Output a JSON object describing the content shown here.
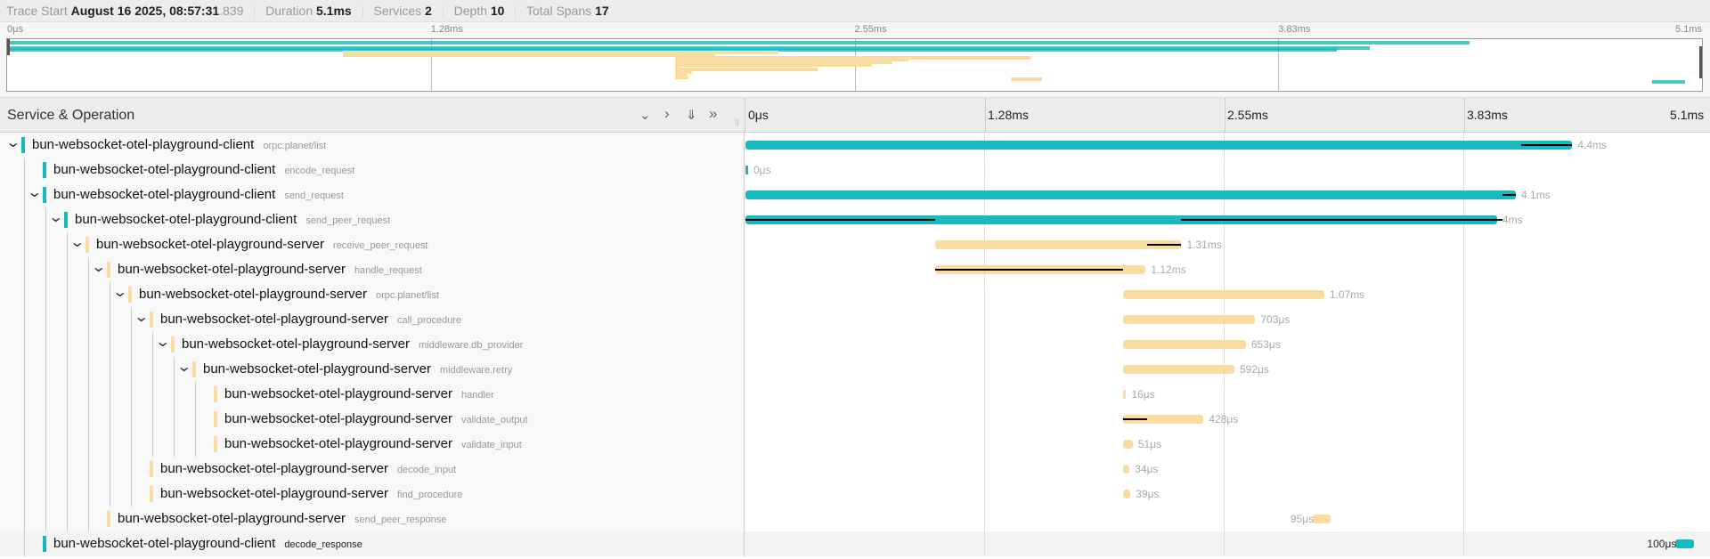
{
  "header": {
    "trace_start_label": "Trace Start",
    "trace_start_value": "August 16 2025, 08:57:31",
    "trace_start_ms": ".839",
    "duration_label": "Duration",
    "duration_value": "5.1ms",
    "services_label": "Services",
    "services_value": "2",
    "depth_label": "Depth",
    "depth_value": "10",
    "total_spans_label": "Total Spans",
    "total_spans_value": "17"
  },
  "ticks": [
    "0μs",
    "1.28ms",
    "2.55ms",
    "3.83ms",
    "5.1ms"
  ],
  "total_ms": 5.1,
  "column_header": {
    "title": "Service & Operation",
    "buttons": [
      "collapse-one",
      "expand-one",
      "collapse-all",
      "expand-all"
    ]
  },
  "colors": {
    "client": "#17b8be",
    "server": "#f8dca1",
    "critical": "#000000"
  },
  "spans": [
    {
      "service": "bun-websocket-otel-playground-client",
      "operation": "orpc.planet/list",
      "depth": 0,
      "expandable": true,
      "kind": "client",
      "start_ms": 0,
      "duration_ms": 4.4,
      "duration": "4.4ms",
      "critical": [
        [
          4.13,
          4.4
        ]
      ]
    },
    {
      "service": "bun-websocket-otel-playground-client",
      "operation": "encode_request",
      "depth": 1,
      "expandable": false,
      "kind": "client",
      "start_ms": 0,
      "duration_ms": 0,
      "duration": "0μs",
      "critical": []
    },
    {
      "service": "bun-websocket-otel-playground-client",
      "operation": "send_request",
      "depth": 1,
      "expandable": true,
      "kind": "client",
      "start_ms": 0,
      "duration_ms": 4.1,
      "duration": "4.1ms",
      "critical": [
        [
          4.03,
          4.1
        ]
      ]
    },
    {
      "service": "bun-websocket-otel-playground-client",
      "operation": "send_peer_request",
      "depth": 2,
      "expandable": true,
      "kind": "client",
      "start_ms": 0,
      "duration_ms": 4.0,
      "duration": "4ms",
      "critical": [
        [
          0,
          1.01
        ],
        [
          2.32,
          4.03
        ]
      ]
    },
    {
      "service": "bun-websocket-otel-playground-server",
      "operation": "receive_peer_request",
      "depth": 3,
      "expandable": true,
      "kind": "server",
      "start_ms": 1.01,
      "duration_ms": 1.31,
      "duration": "1.31ms",
      "critical": [
        [
          2.14,
          2.32
        ]
      ]
    },
    {
      "service": "bun-websocket-otel-playground-server",
      "operation": "handle_request",
      "depth": 4,
      "expandable": true,
      "kind": "server",
      "start_ms": 1.01,
      "duration_ms": 1.12,
      "duration": "1.12ms",
      "critical": [
        [
          1.01,
          2.01
        ]
      ]
    },
    {
      "service": "bun-websocket-otel-playground-server",
      "operation": "orpc.planet/list",
      "depth": 5,
      "expandable": true,
      "kind": "server",
      "start_ms": 2.01,
      "duration_ms": 1.07,
      "duration": "1.07ms",
      "critical": []
    },
    {
      "service": "bun-websocket-otel-playground-server",
      "operation": "call_procedure",
      "depth": 6,
      "expandable": true,
      "kind": "server",
      "start_ms": 2.01,
      "duration_ms": 0.703,
      "duration": "703μs",
      "critical": []
    },
    {
      "service": "bun-websocket-otel-playground-server",
      "operation": "middleware.db_provider",
      "depth": 7,
      "expandable": true,
      "kind": "server",
      "start_ms": 2.01,
      "duration_ms": 0.653,
      "duration": "653μs",
      "critical": []
    },
    {
      "service": "bun-websocket-otel-playground-server",
      "operation": "middleware.retry",
      "depth": 8,
      "expandable": true,
      "kind": "server",
      "start_ms": 2.01,
      "duration_ms": 0.592,
      "duration": "592μs",
      "critical": []
    },
    {
      "service": "bun-websocket-otel-playground-server",
      "operation": "handler",
      "depth": 9,
      "expandable": false,
      "kind": "server",
      "start_ms": 2.01,
      "duration_ms": 0.016,
      "duration": "16μs",
      "critical": []
    },
    {
      "service": "bun-websocket-otel-playground-server",
      "operation": "validate_output",
      "depth": 9,
      "expandable": false,
      "kind": "server",
      "start_ms": 2.01,
      "duration_ms": 0.428,
      "duration": "428μs",
      "critical": [
        [
          2.01,
          2.14
        ]
      ]
    },
    {
      "service": "bun-websocket-otel-playground-server",
      "operation": "validate_input",
      "depth": 9,
      "expandable": false,
      "kind": "server",
      "start_ms": 2.01,
      "duration_ms": 0.051,
      "duration": "51μs",
      "critical": []
    },
    {
      "service": "bun-websocket-otel-playground-server",
      "operation": "decode_input",
      "depth": 6,
      "expandable": false,
      "kind": "server",
      "start_ms": 2.01,
      "duration_ms": 0.034,
      "duration": "34μs",
      "critical": []
    },
    {
      "service": "bun-websocket-otel-playground-server",
      "operation": "find_procedure",
      "depth": 6,
      "expandable": false,
      "kind": "server",
      "start_ms": 2.01,
      "duration_ms": 0.039,
      "duration": "39μs",
      "critical": []
    },
    {
      "service": "bun-websocket-otel-playground-server",
      "operation": "send_peer_response",
      "depth": 4,
      "expandable": false,
      "kind": "server",
      "start_ms": 3.02,
      "duration_ms": 0.095,
      "duration": "95μs",
      "label_left": true,
      "critical": []
    },
    {
      "service": "bun-websocket-otel-playground-client",
      "operation": "decode_response",
      "depth": 1,
      "expandable": false,
      "kind": "client",
      "start_ms": 4.95,
      "duration_ms": 0.1,
      "duration": "100μs",
      "label_left": true,
      "highlighted": true,
      "critical": []
    }
  ]
}
